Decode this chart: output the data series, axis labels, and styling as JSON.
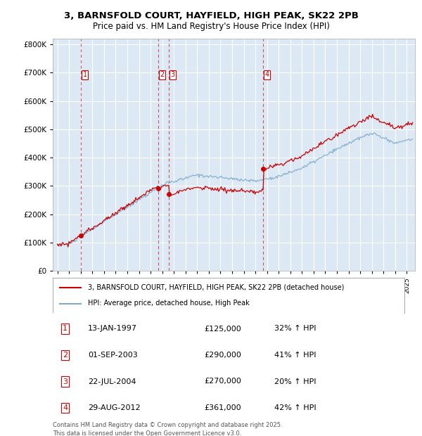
{
  "title_line1": "3, BARNSFOLD COURT, HAYFIELD, HIGH PEAK, SK22 2PB",
  "title_line2": "Price paid vs. HM Land Registry's House Price Index (HPI)",
  "plot_bg_color": "#dce9f5",
  "grid_color": "#ffffff",
  "hpi_line_color": "#7faacc",
  "price_line_color": "#cc0000",
  "ylim": [
    0,
    820000
  ],
  "yticks": [
    0,
    100000,
    200000,
    300000,
    400000,
    500000,
    600000,
    700000,
    800000
  ],
  "ytick_labels": [
    "£0",
    "£100K",
    "£200K",
    "£300K",
    "£400K",
    "£500K",
    "£600K",
    "£700K",
    "£800K"
  ],
  "sales": [
    {
      "num": 1,
      "date": "13-JAN-1997",
      "year": 1997.04,
      "price": 125000,
      "hpi_pct": "32% ↑ HPI"
    },
    {
      "num": 2,
      "date": "01-SEP-2003",
      "year": 2003.67,
      "price": 290000,
      "hpi_pct": "41% ↑ HPI"
    },
    {
      "num": 3,
      "date": "22-JUL-2004",
      "year": 2004.56,
      "price": 270000,
      "hpi_pct": "20% ↑ HPI"
    },
    {
      "num": 4,
      "date": "29-AUG-2012",
      "year": 2012.66,
      "price": 361000,
      "hpi_pct": "42% ↑ HPI"
    }
  ],
  "legend_label_price": "3, BARNSFOLD COURT, HAYFIELD, HIGH PEAK, SK22 2PB (detached house)",
  "legend_label_hpi": "HPI: Average price, detached house, High Peak",
  "footer1": "Contains HM Land Registry data © Crown copyright and database right 2025.",
  "footer2": "This data is licensed under the Open Government Licence v3.0."
}
